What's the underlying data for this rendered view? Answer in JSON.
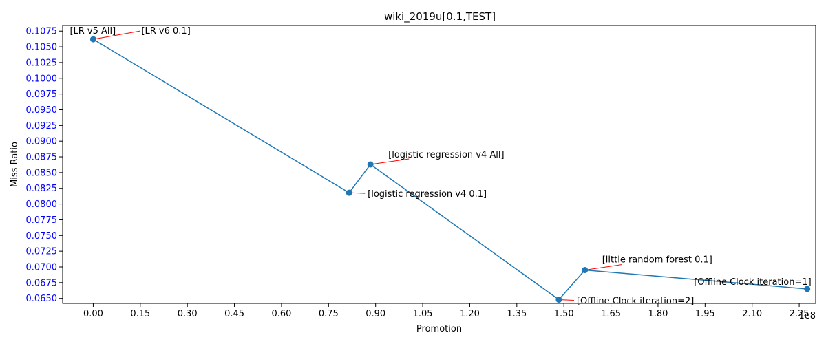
{
  "chart_data": {
    "type": "line",
    "title": "wiki_2019u[0.1,TEST]",
    "xlabel": "Promotion",
    "ylabel": "Miss Ratio",
    "x_offset_label": "1e8",
    "xlim": [
      -0.0975,
      2.3025
    ],
    "ylim": [
      0.0642,
      0.1084
    ],
    "x_ticks": [
      0.0,
      0.15,
      0.3,
      0.45,
      0.6,
      0.75,
      0.9,
      1.05,
      1.2,
      1.35,
      1.5,
      1.65,
      1.8,
      1.95,
      2.1,
      2.25
    ],
    "x_tick_labels": [
      "0.00",
      "0.15",
      "0.30",
      "0.45",
      "0.60",
      "0.75",
      "0.90",
      "1.05",
      "1.20",
      "1.35",
      "1.50",
      "1.65",
      "1.80",
      "1.95",
      "2.10",
      "2.25"
    ],
    "y_ticks": [
      0.065,
      0.0675,
      0.07,
      0.0725,
      0.075,
      0.0775,
      0.08,
      0.0825,
      0.085,
      0.0875,
      0.09,
      0.0925,
      0.095,
      0.0975,
      0.1,
      0.1025,
      0.105,
      0.1075
    ],
    "y_tick_labels": [
      "0.0650",
      "0.0675",
      "0.0700",
      "0.0725",
      "0.0750",
      "0.0775",
      "0.0800",
      "0.0825",
      "0.0850",
      "0.0875",
      "0.0900",
      "0.0925",
      "0.0950",
      "0.0975",
      "0.1000",
      "0.1025",
      "0.1050",
      "0.1075"
    ],
    "ytick_color": "#0000ff",
    "line_color": "#1f77b4",
    "annotation_line_color": "#ff0000",
    "grid": false,
    "points": [
      {
        "x": 0.0,
        "y": 0.1062,
        "labels": [
          "[LR v5 All]",
          "[LR v6 0.1]"
        ]
      },
      {
        "x": 0.8155,
        "y": 0.0818,
        "labels": [
          "[logistic regression v4 0.1]"
        ]
      },
      {
        "x": 0.8835,
        "y": 0.0863,
        "labels": [
          "[logistic regression v4 All]"
        ]
      },
      {
        "x": 1.484,
        "y": 0.0648,
        "labels": [
          "[Offline Clock iteration=2]"
        ]
      },
      {
        "x": 1.567,
        "y": 0.0695,
        "labels": [
          "[little random forest 0.1]"
        ]
      },
      {
        "x": 2.2755,
        "y": 0.0665,
        "labels": [
          "[Offline Clock iteration=1]"
        ]
      }
    ]
  }
}
